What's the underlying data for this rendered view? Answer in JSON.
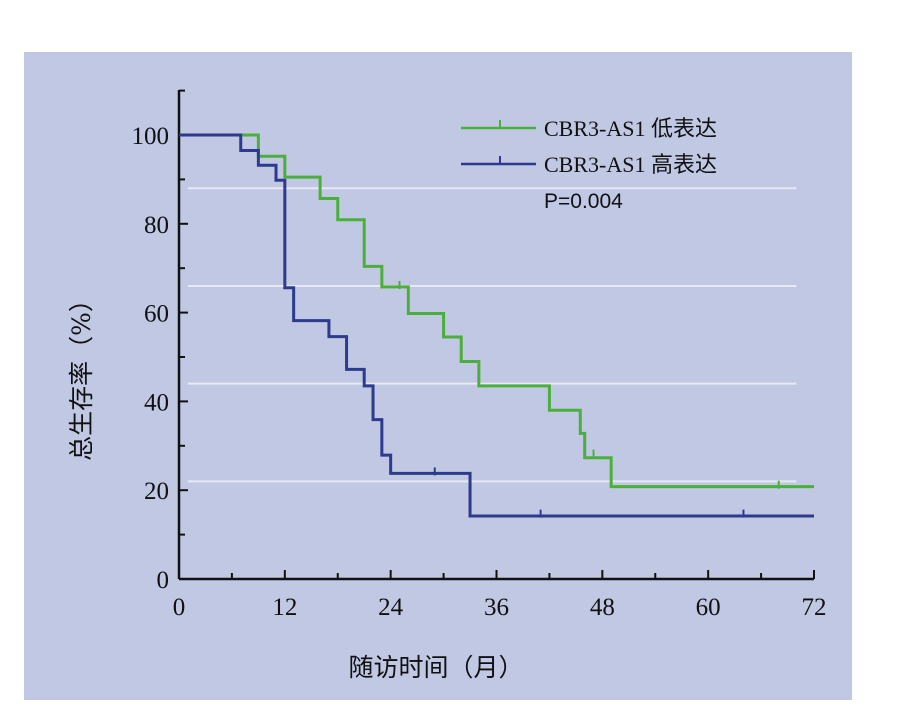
{
  "chart_data": {
    "type": "line",
    "xlabel": "随访时间（月）",
    "ylabel": "总生存率（%）",
    "xlim": [
      0,
      72
    ],
    "ylim": [
      0,
      100
    ],
    "x_ticks": [
      "0",
      "12",
      "24",
      "36",
      "48",
      "60",
      "72"
    ],
    "y_ticks": [
      "0",
      "20",
      "40",
      "60",
      "80",
      "100"
    ],
    "grid": "horizontal light lines",
    "legend_position": "top-right",
    "annotation": "P=0.004",
    "series": [
      {
        "name": "CBR3-AS1 低表达",
        "color": "#4caf3c",
        "steps": [
          [
            0,
            100
          ],
          [
            9,
            95.2
          ],
          [
            12,
            90.5
          ],
          [
            16,
            85.7
          ],
          [
            18,
            80.9
          ],
          [
            21,
            70.4
          ],
          [
            23,
            65.8
          ],
          [
            26,
            59.8
          ],
          [
            30,
            54.5
          ],
          [
            32,
            49
          ],
          [
            34,
            43.5
          ],
          [
            42,
            38
          ],
          [
            45.5,
            32.8
          ],
          [
            46,
            27.3
          ],
          [
            49,
            20.8
          ],
          [
            72,
            20.8
          ]
        ],
        "censors": [
          [
            25,
            66
          ],
          [
            47,
            28
          ],
          [
            68,
            21
          ]
        ]
      },
      {
        "name": "CBR3-AS1 高表达",
        "color": "#2e3a8c",
        "steps": [
          [
            0,
            100
          ],
          [
            7,
            96.5
          ],
          [
            9,
            93.2
          ],
          [
            11,
            89.8
          ],
          [
            12,
            65.6
          ],
          [
            13,
            58.2
          ],
          [
            17,
            54.6
          ],
          [
            19,
            47.2
          ],
          [
            21,
            43.5
          ],
          [
            22,
            35.9
          ],
          [
            23,
            27.9
          ],
          [
            24,
            23.8
          ],
          [
            33,
            14.2
          ],
          [
            72,
            14.2
          ]
        ],
        "censors": [
          [
            29,
            24
          ],
          [
            41,
            14.5
          ],
          [
            64,
            14.5
          ]
        ]
      }
    ]
  }
}
